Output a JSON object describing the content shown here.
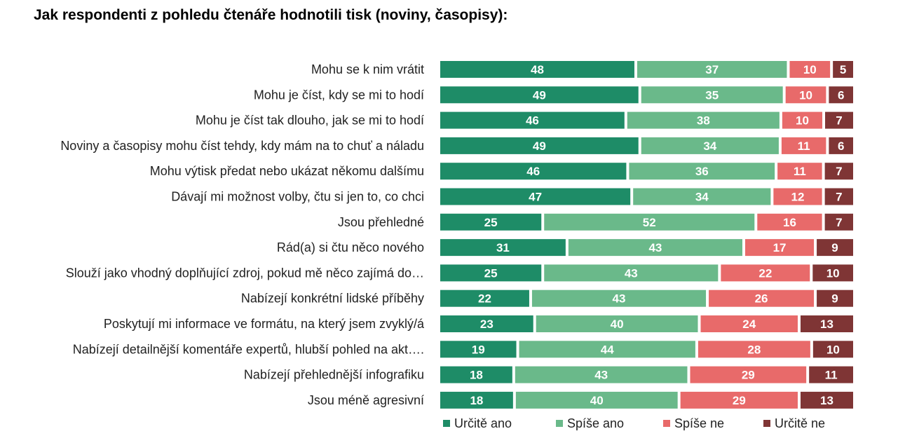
{
  "chart_data": {
    "type": "bar",
    "orientation": "horizontal",
    "stacked": "100%",
    "title": "Jak respondenti z pohledu čtenáře hodnotili tisk (noviny, časopisy):",
    "categories": [
      "Mohu se k nim vrátit",
      "Mohu je číst, kdy se mi to hodí",
      "Mohu je číst tak dlouho, jak se mi to hodí",
      "Noviny a časopisy mohu číst tehdy, kdy mám na to chuť a náladu",
      "Mohu výtisk předat nebo ukázat někomu dalšímu",
      "Dávají mi možnost volby, čtu si jen to, co chci",
      "Jsou přehledné",
      "Rád(a) si čtu něco nového",
      "Slouží jako vhodný doplňující zdroj, pokud mě něco zajímá do…",
      "Nabízejí konkrétní lidské příběhy",
      "Poskytují mi informace ve formátu, na který jsem zvyklý/á",
      "Nabízejí detailnější komentáře expertů, hlubší pohled na akt….",
      "Nabízejí přehlednější infografiku",
      "Jsou méně agresivní"
    ],
    "series": [
      {
        "name": "Určitě ano",
        "color": "#1e8c67",
        "values": [
          48,
          49,
          46,
          49,
          46,
          47,
          25,
          31,
          25,
          22,
          23,
          19,
          18,
          18
        ]
      },
      {
        "name": "Spíše ano",
        "color": "#6ab98a",
        "values": [
          37,
          35,
          38,
          34,
          36,
          34,
          52,
          43,
          43,
          43,
          40,
          44,
          43,
          40
        ]
      },
      {
        "name": "Spíše ne",
        "color": "#e86a6a",
        "values": [
          10,
          10,
          10,
          11,
          11,
          12,
          16,
          17,
          22,
          26,
          24,
          28,
          29,
          29
        ]
      },
      {
        "name": "Určitě ne",
        "color": "#7f3535",
        "values": [
          5,
          6,
          7,
          6,
          7,
          7,
          7,
          9,
          10,
          9,
          13,
          10,
          11,
          13
        ]
      }
    ],
    "legend_position": "bottom",
    "grid": false
  }
}
